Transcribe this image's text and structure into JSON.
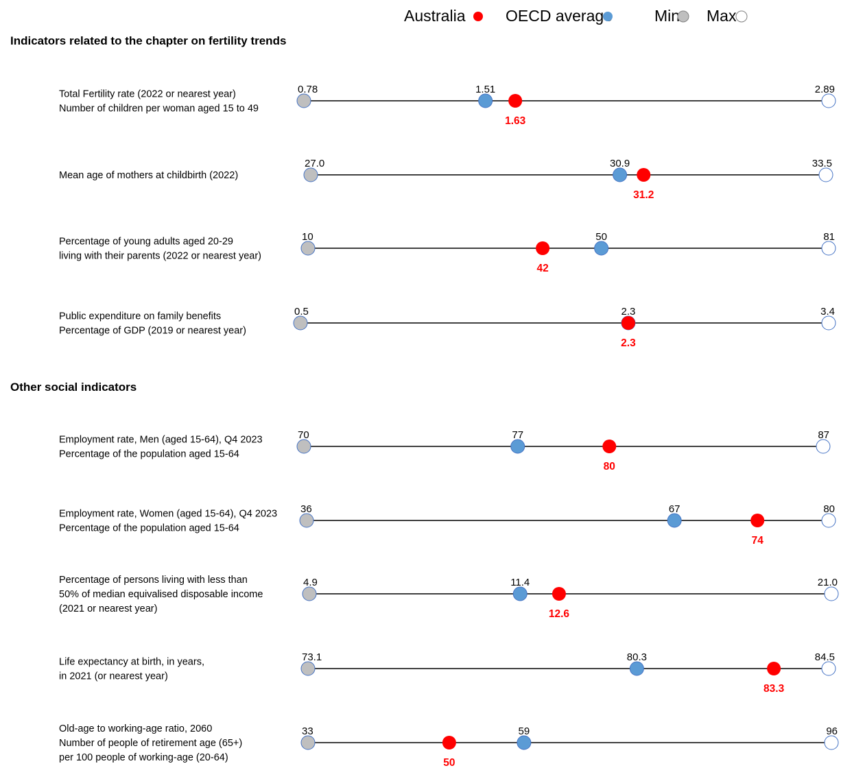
{
  "legend": [
    {
      "key": "australia",
      "label": "Australia",
      "color": "#ff0000"
    },
    {
      "key": "oecd",
      "label": "OECD average",
      "color": "#5b9bd5"
    },
    {
      "key": "min",
      "label": "Min",
      "color": "#bfbfbf"
    },
    {
      "key": "max",
      "label": "Max",
      "color": "#ffffff"
    }
  ],
  "colors": {
    "australia": "#ff0000",
    "oecd": "#5b9bd5",
    "min": "#bfbfbf",
    "max": "#ffffff",
    "marker_stroke": "#4472c4",
    "line": "#000000"
  },
  "chart_data": {
    "type": "dot-range",
    "sections": [
      {
        "title": "Indicators related to the chapter on fertility trends",
        "rows": [
          {
            "label": [
              "Total Fertility rate (2022 or nearest year)",
              "Number of children per woman aged 15 to 49"
            ],
            "min": 0.78,
            "min_label": "0.78",
            "max": 2.89,
            "max_label": "2.89",
            "oecd": 1.51,
            "oecd_label": "1.51",
            "australia": 1.63,
            "australia_label": "1.63"
          },
          {
            "label": [
              "Mean age of mothers at childbirth (2022)"
            ],
            "min": 27.0,
            "min_label": "27.0",
            "max": 33.5,
            "max_label": "33.5",
            "oecd": 30.9,
            "oecd_label": "30.9",
            "australia": 31.2,
            "australia_label": "31.2"
          },
          {
            "label": [
              "Percentage of young adults aged 20-29",
              "living with their parents (2022 or nearest year)"
            ],
            "min": 10,
            "min_label": "10",
            "max": 81,
            "max_label": "81",
            "oecd": 50,
            "oecd_label": "50",
            "australia": 42,
            "australia_label": "42"
          },
          {
            "label": [
              "Public expenditure on family benefits",
              "Percentage of GDP (2019 or nearest year)"
            ],
            "min": 0.5,
            "min_label": "0.5",
            "max": 3.4,
            "max_label": "3.4",
            "oecd": 2.3,
            "oecd_label": "2.3",
            "australia": 2.3,
            "australia_label": "2.3"
          }
        ]
      },
      {
        "title": "Other social indicators",
        "rows": [
          {
            "label": [
              "Employment rate, Men (aged 15-64), Q4 2023",
              "Percentage of the population aged 15-64"
            ],
            "min": 70,
            "min_label": "70",
            "max": 87,
            "max_label": "87",
            "oecd": 77,
            "oecd_label": "77",
            "australia": 80,
            "australia_label": "80"
          },
          {
            "label": [
              "Employment rate, Women (aged 15-64), Q4 2023",
              "Percentage of the population aged 15-64"
            ],
            "min": 36,
            "min_label": "36",
            "max": 80,
            "max_label": "80",
            "oecd": 67,
            "oecd_label": "67",
            "australia": 74,
            "australia_label": "74"
          },
          {
            "label": [
              "Percentage of persons living with less than",
              "50% of median equivalised disposable income",
              "(2021 or nearest year)"
            ],
            "min": 4.9,
            "min_label": "4.9",
            "max": 21.0,
            "max_label": "21.0",
            "oecd": 11.4,
            "oecd_label": "11.4",
            "australia": 12.6,
            "australia_label": "12.6"
          },
          {
            "label": [
              "Life expectancy at birth, in years,",
              "in 2021 (or nearest year)"
            ],
            "min": 73.1,
            "min_label": "73.1",
            "max": 84.5,
            "max_label": "84.5",
            "oecd": 80.3,
            "oecd_label": "80.3",
            "australia": 83.3,
            "australia_label": "83.3"
          },
          {
            "label": [
              "Old-age to working-age ratio, 2060",
              "Number of people of retirement age (65+)",
              "per 100 people of working-age (20-64)"
            ],
            "min": 33,
            "min_label": "33",
            "max": 96,
            "max_label": "96",
            "oecd": 59,
            "oecd_label": "59",
            "australia": 50,
            "australia_label": "50"
          }
        ]
      }
    ]
  }
}
